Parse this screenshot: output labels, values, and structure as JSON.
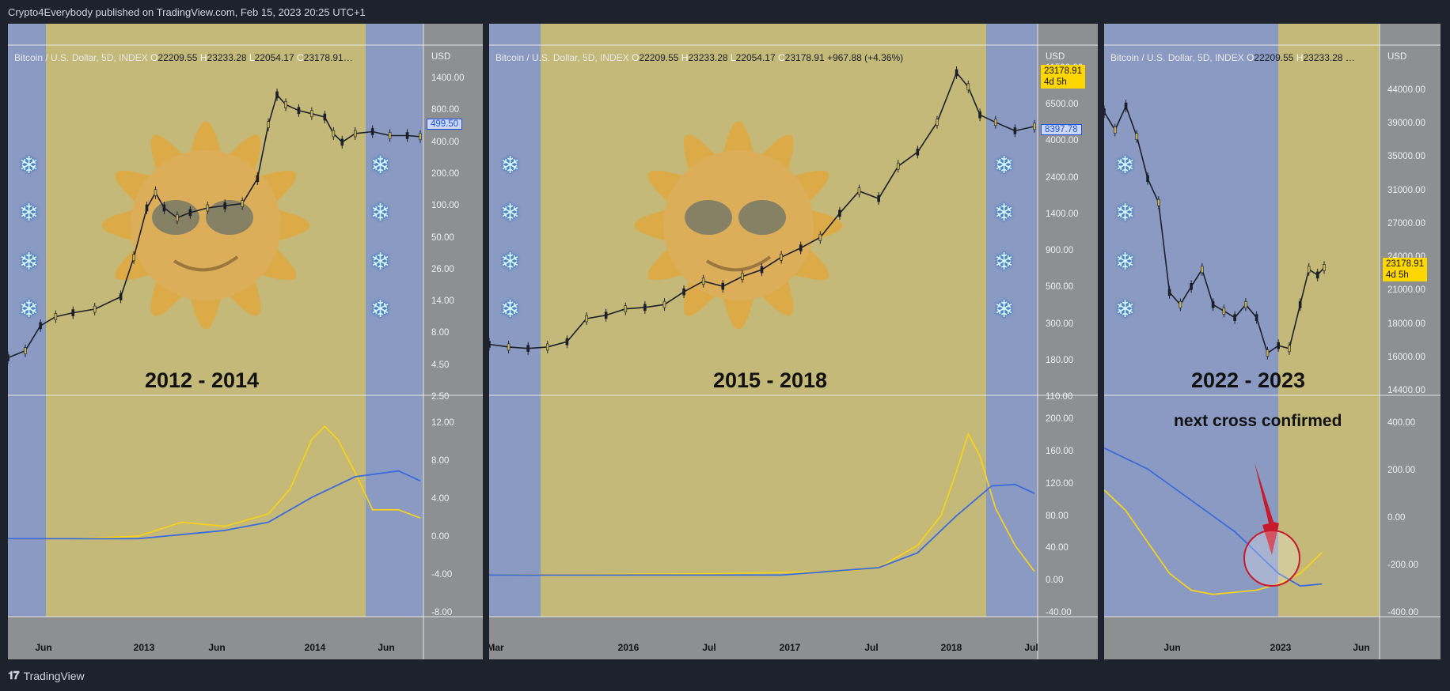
{
  "header": "Crypto4Everybody published on TradingView.com, Feb 15, 2023 20:25 UTC+1",
  "footer": {
    "brand": "TradingView",
    "logo": "tradingview-logo-icon"
  },
  "colors": {
    "bull_shade": "#c4b978",
    "bear_shade": "#8b9ac2",
    "fast_line": "#f5d21f",
    "slow_line": "#3b6bdc",
    "price": "#1b1f2a"
  },
  "panels": [
    {
      "legend": {
        "title": "Bitcoin / U.S. Dollar, 5D, INDEX",
        "o_label": "O",
        "o": "22209.55",
        "h_label": "H",
        "h": "23233.28",
        "l_label": "L",
        "l": "22054.17",
        "c_label": "C",
        "c": "23178.91…"
      },
      "period": "2012 - 2014",
      "currency": "USD",
      "price_ticks": [
        "1400.00",
        "800.00",
        "400.00",
        "200.00",
        "100.00",
        "50.00",
        "26.00",
        "14.00",
        "8.00",
        "4.50",
        "2.50"
      ],
      "osc_ticks": [
        "12.00",
        "8.00",
        "4.00",
        "0.00",
        "-4.00",
        "-8.00"
      ],
      "x_ticks": [
        "Jun",
        "2013",
        "Jun",
        "2014",
        "Jun"
      ],
      "price_tag": "499.50"
    },
    {
      "legend": {
        "title": "Bitcoin / U.S. Dollar, 5D, INDEX",
        "o_label": "O",
        "o": "22209.55",
        "h_label": "H",
        "h": "23233.28",
        "l_label": "L",
        "l": "22054.17",
        "c_label": "C",
        "c": "23178.91",
        "chg": "+967.88 (+4.36%)"
      },
      "period": "2015 - 2018",
      "currency": "USD",
      "price_ticks": [
        "11500.00",
        "6500.00",
        "4000.00",
        "2400.00",
        "1400.00",
        "900.00",
        "500.00",
        "300.00",
        "180.00",
        "110.00"
      ],
      "osc_ticks": [
        "200.00",
        "160.00",
        "120.00",
        "80.00",
        "40.00",
        "0.00",
        "-40.00"
      ],
      "x_ticks": [
        "Mar",
        "2016",
        "Jul",
        "2017",
        "Jul",
        "2018",
        "Jul"
      ],
      "price_tag": "8397.78",
      "last_price": "23178.91",
      "countdown": "4d 5h"
    },
    {
      "legend": {
        "title": "Bitcoin / U.S. Dollar, 5D, INDEX",
        "o_label": "O",
        "o": "22209.55",
        "h_label": "H",
        "h": "23233.28 …"
      },
      "period": "2022 - 2023",
      "currency": "USD",
      "price_ticks": [
        "44000.00",
        "39000.00",
        "35000.00",
        "31000.00",
        "27000.00",
        "24000.00",
        "21000.00",
        "18000.00",
        "16000.00",
        "14400.00"
      ],
      "osc_ticks": [
        "400.00",
        "200.00",
        "0.00",
        "-200.00",
        "-400.00"
      ],
      "x_ticks": [
        "Jun",
        "2023",
        "Jun"
      ],
      "last_price": "23178.91",
      "countdown": "4d 5h",
      "annotation": "next cross confirmed"
    }
  ],
  "chart_data": [
    {
      "type": "line",
      "subtype": "candlestick + oscillator",
      "period": "2012 - 2014",
      "x_ticks": [
        "Jun",
        "2013",
        "Jun",
        "2014",
        "Jun"
      ],
      "price_axis": "log",
      "price_series": [
        [
          0,
          5.2
        ],
        [
          8,
          6
        ],
        [
          15,
          10
        ],
        [
          22,
          12
        ],
        [
          30,
          13
        ],
        [
          40,
          14
        ],
        [
          52,
          18
        ],
        [
          58,
          40
        ],
        [
          64,
          110
        ],
        [
          68,
          150
        ],
        [
          72,
          110
        ],
        [
          78,
          90
        ],
        [
          84,
          100
        ],
        [
          92,
          110
        ],
        [
          100,
          115
        ],
        [
          108,
          120
        ],
        [
          115,
          200
        ],
        [
          120,
          600
        ],
        [
          124,
          1100
        ],
        [
          128,
          900
        ],
        [
          134,
          800
        ],
        [
          140,
          750
        ],
        [
          146,
          700
        ],
        [
          150,
          500
        ],
        [
          154,
          420
        ],
        [
          160,
          500
        ],
        [
          168,
          520
        ],
        [
          176,
          480
        ],
        [
          184,
          480
        ],
        [
          190,
          470
        ]
      ],
      "fast_series": [
        [
          0,
          0
        ],
        [
          30,
          0
        ],
        [
          60,
          0.3
        ],
        [
          80,
          2
        ],
        [
          100,
          1.5
        ],
        [
          120,
          3
        ],
        [
          130,
          6
        ],
        [
          140,
          12
        ],
        [
          146,
          13.6
        ],
        [
          152,
          12
        ],
        [
          160,
          8
        ],
        [
          168,
          3.5
        ],
        [
          180,
          3.5
        ],
        [
          190,
          2.5
        ]
      ],
      "slow_series": [
        [
          0,
          0
        ],
        [
          60,
          0
        ],
        [
          100,
          1
        ],
        [
          120,
          2
        ],
        [
          140,
          5
        ],
        [
          160,
          7.5
        ],
        [
          180,
          8.2
        ],
        [
          190,
          7
        ]
      ]
    },
    {
      "type": "line",
      "subtype": "candlestick + oscillator",
      "period": "2015 - 2018",
      "x_ticks": [
        "Mar",
        "2016",
        "Jul",
        "2017",
        "Jul",
        "2018",
        "Jul"
      ],
      "price_axis": "log",
      "price_series": [
        [
          0,
          240
        ],
        [
          10,
          230
        ],
        [
          20,
          225
        ],
        [
          30,
          230
        ],
        [
          40,
          250
        ],
        [
          50,
          360
        ],
        [
          60,
          380
        ],
        [
          70,
          420
        ],
        [
          80,
          430
        ],
        [
          90,
          450
        ],
        [
          100,
          550
        ],
        [
          110,
          650
        ],
        [
          120,
          600
        ],
        [
          130,
          700
        ],
        [
          140,
          780
        ],
        [
          150,
          950
        ],
        [
          160,
          1100
        ],
        [
          170,
          1300
        ],
        [
          180,
          1900
        ],
        [
          190,
          2700
        ],
        [
          200,
          2400
        ],
        [
          210,
          4000
        ],
        [
          220,
          5000
        ],
        [
          230,
          8000
        ],
        [
          240,
          17500
        ],
        [
          246,
          14000
        ],
        [
          252,
          9000
        ],
        [
          260,
          8000
        ],
        [
          270,
          7000
        ],
        [
          280,
          7500
        ]
      ],
      "fast_series": [
        [
          0,
          0
        ],
        [
          120,
          2
        ],
        [
          180,
          5
        ],
        [
          200,
          10
        ],
        [
          220,
          40
        ],
        [
          232,
          80
        ],
        [
          240,
          140
        ],
        [
          246,
          190
        ],
        [
          252,
          160
        ],
        [
          260,
          90
        ],
        [
          270,
          40
        ],
        [
          280,
          5
        ]
      ],
      "slow_series": [
        [
          0,
          0
        ],
        [
          150,
          0
        ],
        [
          200,
          10
        ],
        [
          220,
          30
        ],
        [
          240,
          80
        ],
        [
          258,
          120
        ],
        [
          270,
          122
        ],
        [
          280,
          110
        ]
      ]
    },
    {
      "type": "line",
      "subtype": "candlestick + oscillator",
      "period": "2022 - 2023",
      "x_ticks": [
        "Jun",
        "2023",
        "Jun"
      ],
      "price_axis": "log",
      "price_series": [
        [
          0,
          43000
        ],
        [
          10,
          40000
        ],
        [
          20,
          44000
        ],
        [
          30,
          39000
        ],
        [
          40,
          33000
        ],
        [
          50,
          30000
        ],
        [
          60,
          21000
        ],
        [
          70,
          20000
        ],
        [
          80,
          21500
        ],
        [
          90,
          23000
        ],
        [
          100,
          20000
        ],
        [
          110,
          19500
        ],
        [
          120,
          19000
        ],
        [
          130,
          20000
        ],
        [
          140,
          19000
        ],
        [
          150,
          16500
        ],
        [
          160,
          17000
        ],
        [
          170,
          16800
        ],
        [
          180,
          20000
        ],
        [
          188,
          23000
        ],
        [
          196,
          22500
        ],
        [
          202,
          23178
        ]
      ],
      "fast_series": [
        [
          0,
          100
        ],
        [
          20,
          0
        ],
        [
          40,
          -150
        ],
        [
          60,
          -300
        ],
        [
          80,
          -380
        ],
        [
          100,
          -400
        ],
        [
          120,
          -390
        ],
        [
          140,
          -380
        ],
        [
          160,
          -350
        ],
        [
          180,
          -300
        ],
        [
          200,
          -200
        ]
      ],
      "slow_series": [
        [
          0,
          300
        ],
        [
          40,
          200
        ],
        [
          80,
          50
        ],
        [
          120,
          -100
        ],
        [
          160,
          -300
        ],
        [
          180,
          -360
        ],
        [
          200,
          -350
        ]
      ],
      "annotation": "next cross confirmed"
    }
  ]
}
